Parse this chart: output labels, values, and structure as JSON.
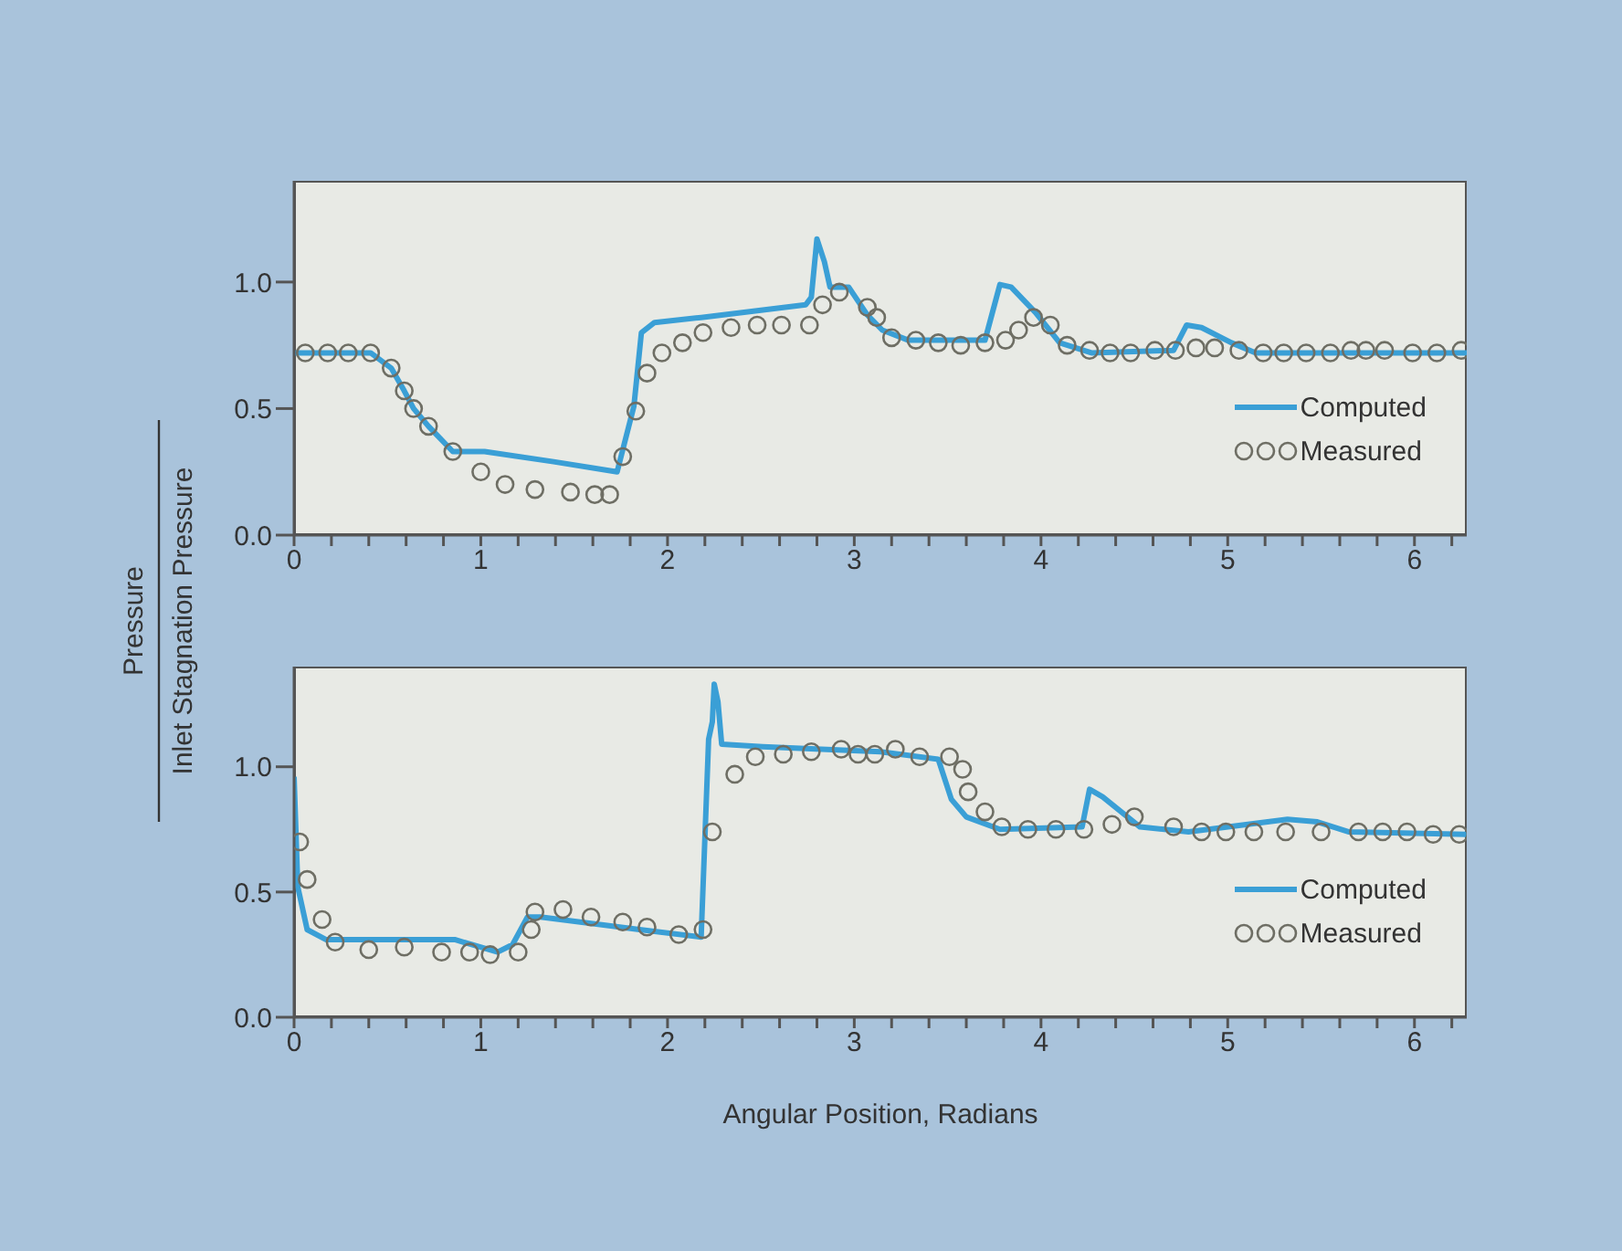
{
  "chart_data": [
    {
      "type": "line",
      "ylabel": "Pressure",
      "xlim": [
        0,
        6.28
      ],
      "ylim": [
        0,
        1.4
      ],
      "xticks": [
        0,
        {
          "value": 0.2,
          "label": null
        },
        {
          "value": 0.4,
          "label": null
        },
        {
          "value": 0.6,
          "label": null
        },
        {
          "value": 0.8,
          "label": null
        },
        1,
        {
          "value": 1.2,
          "label": null
        },
        {
          "value": 1.4,
          "label": null
        },
        {
          "value": 1.6,
          "label": null
        },
        {
          "value": 1.8,
          "label": null
        },
        2,
        {
          "value": 2.2,
          "label": null
        },
        {
          "value": 2.4,
          "label": null
        },
        {
          "value": 2.6,
          "label": null
        },
        {
          "value": 2.8,
          "label": null
        },
        3,
        {
          "value": 3.2,
          "label": null
        },
        {
          "value": 3.4,
          "label": null
        },
        {
          "value": 3.6,
          "label": null
        },
        {
          "value": 3.8,
          "label": null
        },
        4,
        {
          "value": 4.2,
          "label": null
        },
        {
          "value": 4.4,
          "label": null
        },
        {
          "value": 4.6,
          "label": null
        },
        {
          "value": 4.8,
          "label": null
        },
        5,
        {
          "value": 5.2,
          "label": null
        },
        {
          "value": 5.4,
          "label": null
        },
        {
          "value": 5.6,
          "label": null
        },
        {
          "value": 5.8,
          "label": null
        },
        6,
        {
          "value": 6.2,
          "label": null
        }
      ],
      "yticks": [
        {
          "value": 0,
          "label": "0.0"
        },
        {
          "value": 0.5,
          "label": "0.5"
        },
        {
          "value": 1,
          "label": "1.0"
        }
      ],
      "grid": false,
      "legend": "bottom right",
      "series": [
        {
          "name": "Computed",
          "type": "line",
          "marker": "none",
          "color": "#3a9fd6",
          "x": [
            0,
            0.41,
            0.52,
            0.59,
            0.64,
            0.72,
            0.85,
            1.02,
            1.39,
            1.73,
            1.82,
            1.86,
            1.93,
            2.18,
            2.74,
            2.77,
            2.8,
            2.84,
            2.87,
            2.97,
            3.07,
            3.15,
            3.29,
            3.7,
            3.78,
            3.84,
            3.97,
            4.1,
            4.27,
            4.71,
            4.78,
            4.86,
            5.02,
            5.15,
            6.28
          ],
          "values": [
            0.72,
            0.72,
            0.66,
            0.57,
            0.5,
            0.43,
            0.33,
            0.33,
            0.29,
            0.25,
            0.51,
            0.8,
            0.84,
            0.86,
            0.91,
            0.94,
            1.17,
            1.08,
            0.98,
            0.98,
            0.87,
            0.81,
            0.77,
            0.77,
            0.99,
            0.98,
            0.88,
            0.76,
            0.72,
            0.73,
            0.83,
            0.82,
            0.76,
            0.72,
            0.72
          ]
        },
        {
          "name": "Measured",
          "type": "scatter",
          "marker": "circle",
          "color": "#6e6e64",
          "x": [
            0.06,
            0.18,
            0.29,
            0.41,
            0.52,
            0.59,
            0.64,
            0.72,
            0.85,
            1.0,
            1.13,
            1.29,
            1.48,
            1.61,
            1.69,
            1.76,
            1.83,
            1.89,
            1.97,
            2.08,
            2.19,
            2.34,
            2.48,
            2.61,
            2.76,
            2.83,
            2.92,
            3.07,
            3.12,
            3.2,
            3.33,
            3.45,
            3.57,
            3.7,
            3.81,
            3.88,
            3.96,
            4.05,
            4.14,
            4.26,
            4.37,
            4.48,
            4.61,
            4.72,
            4.83,
            4.93,
            5.06,
            5.19,
            5.3,
            5.42,
            5.55,
            5.66,
            5.74,
            5.84,
            5.99,
            6.12,
            6.25
          ],
          "values": [
            0.72,
            0.72,
            0.72,
            0.72,
            0.66,
            0.57,
            0.5,
            0.43,
            0.33,
            0.25,
            0.2,
            0.18,
            0.17,
            0.16,
            0.16,
            0.31,
            0.49,
            0.64,
            0.72,
            0.76,
            0.8,
            0.82,
            0.83,
            0.83,
            0.83,
            0.91,
            0.96,
            0.9,
            0.86,
            0.78,
            0.77,
            0.76,
            0.75,
            0.76,
            0.77,
            0.81,
            0.86,
            0.83,
            0.75,
            0.73,
            0.72,
            0.72,
            0.73,
            0.73,
            0.74,
            0.74,
            0.73,
            0.72,
            0.72,
            0.72,
            0.72,
            0.73,
            0.73,
            0.73,
            0.72,
            0.72,
            0.73
          ]
        }
      ]
    },
    {
      "type": "line",
      "ylabel": "Inlet Stagnation Pressure",
      "xlabel": "Angular Position, Radians",
      "xlim": [
        0,
        6.28
      ],
      "ylim": [
        0,
        1.4
      ],
      "xticks": [
        0,
        {
          "value": 0.2,
          "label": null
        },
        {
          "value": 0.4,
          "label": null
        },
        {
          "value": 0.6,
          "label": null
        },
        {
          "value": 0.8,
          "label": null
        },
        1,
        {
          "value": 1.2,
          "label": null
        },
        {
          "value": 1.4,
          "label": null
        },
        {
          "value": 1.6,
          "label": null
        },
        {
          "value": 1.8,
          "label": null
        },
        2,
        {
          "value": 2.2,
          "label": null
        },
        {
          "value": 2.4,
          "label": null
        },
        {
          "value": 2.6,
          "label": null
        },
        {
          "value": 2.8,
          "label": null
        },
        3,
        {
          "value": 3.2,
          "label": null
        },
        {
          "value": 3.4,
          "label": null
        },
        {
          "value": 3.6,
          "label": null
        },
        {
          "value": 3.8,
          "label": null
        },
        4,
        {
          "value": 4.2,
          "label": null
        },
        {
          "value": 4.4,
          "label": null
        },
        {
          "value": 4.6,
          "label": null
        },
        {
          "value": 4.8,
          "label": null
        },
        5,
        {
          "value": 5.2,
          "label": null
        },
        {
          "value": 5.4,
          "label": null
        },
        {
          "value": 5.6,
          "label": null
        },
        {
          "value": 5.8,
          "label": null
        },
        6,
        {
          "value": 6.2,
          "label": null
        }
      ],
      "yticks": [
        {
          "value": 0,
          "label": "0.0"
        },
        {
          "value": 0.5,
          "label": "0.5"
        },
        {
          "value": 1,
          "label": "1.0"
        }
      ],
      "grid": false,
      "legend": "bottom right",
      "series": [
        {
          "name": "Computed",
          "type": "line",
          "marker": "none",
          "color": "#3a9fd6",
          "x": [
            0,
            0.02,
            0.07,
            0.17,
            0.86,
            1.09,
            1.17,
            1.25,
            1.32,
            1.85,
            2.18,
            2.22,
            2.24,
            2.25,
            2.27,
            2.29,
            2.51,
            3.14,
            3.45,
            3.52,
            3.6,
            3.78,
            4.22,
            4.26,
            4.33,
            4.53,
            4.79,
            5.32,
            5.48,
            5.65,
            6.28
          ],
          "values": [
            0.96,
            0.52,
            0.35,
            0.31,
            0.31,
            0.26,
            0.29,
            0.4,
            0.4,
            0.35,
            0.32,
            1.11,
            1.18,
            1.33,
            1.26,
            1.09,
            1.08,
            1.06,
            1.03,
            0.87,
            0.8,
            0.75,
            0.76,
            0.91,
            0.88,
            0.76,
            0.74,
            0.79,
            0.78,
            0.74,
            0.73
          ]
        },
        {
          "name": "Measured",
          "type": "scatter",
          "marker": "circle",
          "color": "#6e6e64",
          "x": [
            0.03,
            0.07,
            0.15,
            0.22,
            0.4,
            0.59,
            0.79,
            0.94,
            1.05,
            1.2,
            1.27,
            1.29,
            1.44,
            1.59,
            1.76,
            1.89,
            2.06,
            2.19,
            2.24,
            2.36,
            2.47,
            2.62,
            2.77,
            2.93,
            3.02,
            3.11,
            3.22,
            3.35,
            3.51,
            3.58,
            3.61,
            3.7,
            3.79,
            3.93,
            4.08,
            4.23,
            4.38,
            4.5,
            4.71,
            4.86,
            4.99,
            5.14,
            5.31,
            5.5,
            5.7,
            5.83,
            5.96,
            6.1,
            6.24
          ],
          "values": [
            0.7,
            0.55,
            0.39,
            0.3,
            0.27,
            0.28,
            0.26,
            0.26,
            0.25,
            0.26,
            0.35,
            0.42,
            0.43,
            0.4,
            0.38,
            0.36,
            0.33,
            0.35,
            0.74,
            0.97,
            1.04,
            1.05,
            1.06,
            1.07,
            1.05,
            1.05,
            1.07,
            1.04,
            1.04,
            0.99,
            0.9,
            0.82,
            0.76,
            0.75,
            0.75,
            0.75,
            0.77,
            0.8,
            0.76,
            0.74,
            0.74,
            0.74,
            0.74,
            0.74,
            0.74,
            0.74,
            0.74,
            0.73,
            0.73
          ]
        }
      ]
    }
  ]
}
